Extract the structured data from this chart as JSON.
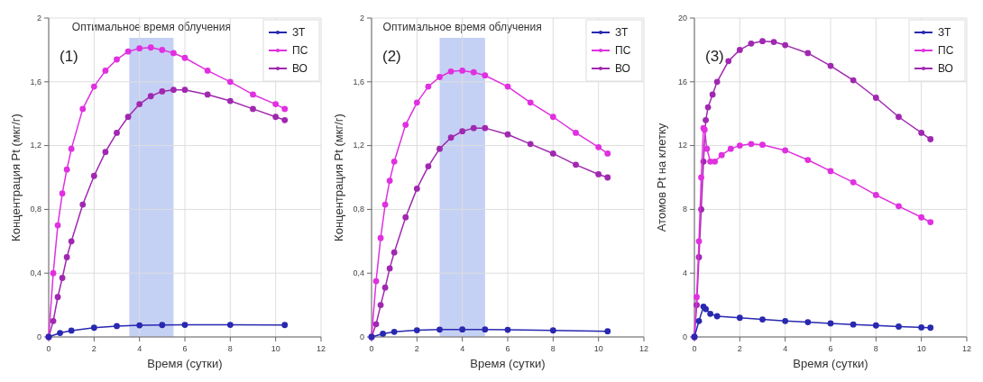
{
  "chart_data": [
    {
      "type": "line",
      "xlabel": "Время (сутки)",
      "ylabel": "Концентрация Pt (мкг/г)",
      "annotations": [
        "(1)"
      ],
      "xlim": [
        0,
        12
      ],
      "xticks": [
        0,
        2,
        4,
        6,
        8,
        10,
        12
      ],
      "ylim": [
        0,
        2
      ],
      "yticks": [
        0,
        {
          "value": 0.4,
          "label": "0,4"
        },
        {
          "value": 0.8,
          "label": "0,8"
        },
        {
          "value": 1.2,
          "label": "1,2"
        },
        {
          "value": 1.6,
          "label": "1,6"
        },
        2
      ],
      "grid": true,
      "legend": "top right",
      "marker": "circle",
      "bands": [
        {
          "axis": "x",
          "from": 3.55,
          "to": 5.5,
          "label": "Оптимальное время облучения",
          "color": "#c5d0f5"
        }
      ],
      "series": [
        {
          "name": "ЗТ",
          "color": "#2828b0",
          "x": [
            0,
            0.5,
            1,
            2,
            3,
            4,
            5,
            6,
            8,
            10.4
          ],
          "values": [
            0,
            0.025,
            0.04,
            0.058,
            0.068,
            0.073,
            0.075,
            0.076,
            0.076,
            0.075
          ]
        },
        {
          "name": "ПС",
          "color": "#e030e0",
          "x": [
            0,
            0.2,
            0.4,
            0.6,
            0.8,
            1,
            1.5,
            2,
            2.5,
            3,
            3.5,
            4,
            4.5,
            5,
            5.5,
            6,
            7,
            8,
            9,
            10,
            10.4
          ],
          "values": [
            0,
            0.4,
            0.7,
            0.9,
            1.05,
            1.18,
            1.43,
            1.57,
            1.67,
            1.74,
            1.79,
            1.81,
            1.815,
            1.8,
            1.78,
            1.75,
            1.67,
            1.6,
            1.52,
            1.46,
            1.43
          ]
        },
        {
          "name": "ВО",
          "color": "#a028b0",
          "x": [
            0,
            0.2,
            0.4,
            0.6,
            0.8,
            1,
            1.5,
            2,
            2.5,
            3,
            3.5,
            4,
            4.5,
            5,
            5.5,
            6,
            7,
            8,
            9,
            10,
            10.4
          ],
          "values": [
            0,
            0.1,
            0.25,
            0.37,
            0.5,
            0.6,
            0.83,
            1.01,
            1.16,
            1.28,
            1.38,
            1.46,
            1.51,
            1.54,
            1.55,
            1.55,
            1.52,
            1.48,
            1.43,
            1.38,
            1.36
          ]
        }
      ]
    },
    {
      "type": "line",
      "xlabel": "Время (сутки)",
      "ylabel": "Концентрация Pt (мкг/г)",
      "annotations": [
        "(2)"
      ],
      "xlim": [
        0,
        12
      ],
      "xticks": [
        0,
        2,
        4,
        6,
        8,
        10,
        12
      ],
      "ylim": [
        0,
        2
      ],
      "yticks": [
        0,
        {
          "value": 0.4,
          "label": "0,4"
        },
        {
          "value": 0.8,
          "label": "0,8"
        },
        {
          "value": 1.2,
          "label": "1,2"
        },
        {
          "value": 1.6,
          "label": "1,6"
        },
        2
      ],
      "grid": true,
      "legend": "top right",
      "marker": "circle",
      "bands": [
        {
          "axis": "x",
          "from": 3,
          "to": 5,
          "label": "Оптимальное время облучения",
          "color": "#c5d0f5"
        }
      ],
      "series": [
        {
          "name": "ЗТ",
          "color": "#2828b0",
          "x": [
            0,
            0.5,
            1,
            2,
            3,
            4,
            5,
            6,
            8,
            10.4
          ],
          "values": [
            0,
            0.02,
            0.032,
            0.042,
            0.046,
            0.047,
            0.047,
            0.045,
            0.041,
            0.036
          ]
        },
        {
          "name": "ПС",
          "color": "#e030e0",
          "x": [
            0,
            0.2,
            0.4,
            0.6,
            0.8,
            1,
            1.5,
            2,
            2.5,
            3,
            3.5,
            4,
            4.5,
            5,
            6,
            7,
            8,
            9,
            10,
            10.4
          ],
          "values": [
            0,
            0.35,
            0.62,
            0.83,
            0.98,
            1.1,
            1.33,
            1.47,
            1.57,
            1.63,
            1.665,
            1.67,
            1.66,
            1.64,
            1.57,
            1.47,
            1.38,
            1.28,
            1.19,
            1.15
          ]
        },
        {
          "name": "ВО",
          "color": "#a028b0",
          "x": [
            0,
            0.2,
            0.4,
            0.6,
            0.8,
            1,
            1.5,
            2,
            2.5,
            3,
            3.5,
            4,
            4.5,
            5,
            6,
            7,
            8,
            9,
            10,
            10.4
          ],
          "values": [
            0,
            0.08,
            0.2,
            0.31,
            0.43,
            0.53,
            0.75,
            0.93,
            1.07,
            1.18,
            1.25,
            1.29,
            1.31,
            1.31,
            1.27,
            1.21,
            1.15,
            1.08,
            1.02,
            1.0
          ]
        }
      ]
    },
    {
      "type": "line",
      "xlabel": "Время (сутки)",
      "ylabel": "Атомов Pt на клетку",
      "annotations": [
        "(3)"
      ],
      "xlim": [
        0,
        12
      ],
      "xticks": [
        0,
        2,
        4,
        6,
        8,
        10,
        12
      ],
      "ylim": [
        0,
        20
      ],
      "yticks": [
        0,
        4,
        8,
        12,
        16,
        20
      ],
      "grid": true,
      "legend": "top right",
      "marker": "circle",
      "series": [
        {
          "name": "ЗТ",
          "color": "#2828b0",
          "x": [
            0,
            0.2,
            0.4,
            0.5,
            0.7,
            1,
            2,
            3,
            4,
            5,
            6,
            7,
            8,
            9,
            10,
            10.4
          ],
          "values": [
            0,
            1.0,
            1.9,
            1.75,
            1.45,
            1.3,
            1.2,
            1.1,
            1.0,
            0.93,
            0.85,
            0.78,
            0.72,
            0.65,
            0.6,
            0.58
          ]
        },
        {
          "name": "ПС",
          "color": "#e030e0",
          "x": [
            0,
            0.1,
            0.2,
            0.3,
            0.4,
            0.45,
            0.55,
            0.7,
            0.9,
            1.2,
            1.6,
            2,
            2.5,
            3,
            4,
            5,
            6,
            7,
            8,
            9,
            10,
            10.4
          ],
          "values": [
            0,
            2.5,
            6,
            10,
            13.1,
            13.0,
            11.8,
            11.0,
            11.0,
            11.4,
            11.8,
            12.0,
            12.1,
            12.05,
            11.7,
            11.1,
            10.4,
            9.7,
            8.9,
            8.2,
            7.5,
            7.2
          ]
        },
        {
          "name": "ВО",
          "color": "#a028b0",
          "x": [
            0,
            0.1,
            0.2,
            0.3,
            0.4,
            0.5,
            0.6,
            0.8,
            1,
            1.5,
            2,
            2.5,
            3,
            3.5,
            4,
            5,
            6,
            7,
            8,
            9,
            10,
            10.4
          ],
          "values": [
            0,
            2,
            5,
            8,
            11,
            13.6,
            14.4,
            15.2,
            16.0,
            17.3,
            18.0,
            18.4,
            18.55,
            18.5,
            18.3,
            17.8,
            17.0,
            16.1,
            15.0,
            13.8,
            12.8,
            12.4
          ]
        }
      ]
    }
  ]
}
